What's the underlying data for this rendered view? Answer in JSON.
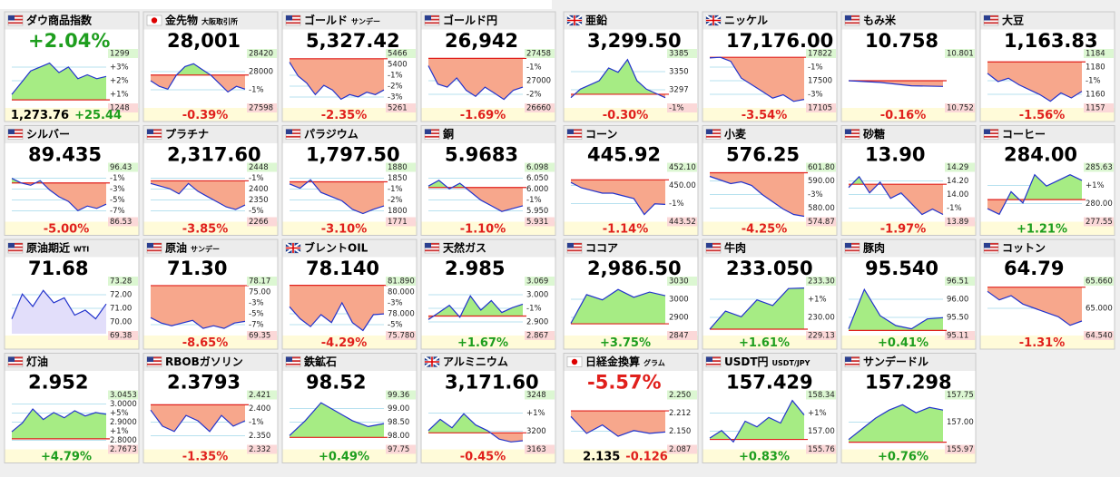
{
  "tiles": [
    {
      "name": "ダウ商品指数",
      "flag": "us",
      "headline": "+2.04%",
      "headline_color": "#1e9e1e",
      "right": [
        "1299",
        "+3%",
        "+2%",
        "+1%",
        "1248"
      ],
      "footer": [
        {
          "text": "1,273.76",
          "color": "#000000"
        },
        {
          "text": "+25.44",
          "color": "#1e9e1e"
        }
      ],
      "chart": {
        "ylim": [
          1240,
          1305
        ],
        "base": 1248,
        "values": [
          1255,
          1270,
          1285,
          1290,
          1295,
          1283,
          1290,
          1275,
          1280,
          1275,
          1278
        ]
      }
    },
    {
      "name": "金先物",
      "sub": "大阪取引所",
      "flag": "jp",
      "headline": "28,001",
      "right": [
        "28420",
        "28000",
        "-1%",
        "27598"
      ],
      "footer": [
        {
          "text": "-0.39%",
          "color": "#e0201c"
        }
      ],
      "chart": {
        "ylim": [
          27550,
          28450
        ],
        "base": 28100,
        "values": [
          28000,
          27900,
          27850,
          28100,
          28250,
          28300,
          28200,
          28100,
          27950,
          27800,
          27900,
          27850
        ]
      }
    },
    {
      "name": "ゴールド",
      "sub": "サンデー",
      "flag": "us",
      "headline": "5,327.42",
      "right": [
        "5466",
        "5400",
        "-1%",
        "-2%",
        "-3%",
        "5261"
      ],
      "footer": [
        {
          "text": "-2.35%",
          "color": "#e0201c"
        }
      ],
      "chart": {
        "ylim": [
          5250,
          5470
        ],
        "base": 5455,
        "values": [
          5440,
          5380,
          5350,
          5300,
          5340,
          5320,
          5280,
          5300,
          5290,
          5310,
          5300,
          5320
        ]
      }
    },
    {
      "name": "ゴールド円",
      "flag": "us",
      "headline": "26,942",
      "right": [
        "27458",
        "-1%",
        "27000",
        "-2%",
        "26660"
      ],
      "footer": [
        {
          "text": "-1.69%",
          "color": "#e0201c"
        }
      ],
      "chart": {
        "ylim": [
          26640,
          27470
        ],
        "base": 27420,
        "values": [
          27300,
          27000,
          26950,
          27100,
          26900,
          26800,
          26950,
          26850,
          26750,
          26900,
          26950
        ]
      }
    },
    {
      "name": "亜鉛",
      "flag": "uk",
      "headline": "3,299.50",
      "right": [
        "3385",
        "3350",
        "3297",
        "-1%"
      ],
      "footer": [
        {
          "text": "-0.30%",
          "color": "#e0201c"
        }
      ],
      "chart": {
        "ylim": [
          3280,
          3400
        ],
        "base": 3308,
        "values": [
          3300,
          3320,
          3330,
          3340,
          3370,
          3360,
          3390,
          3340,
          3320,
          3310,
          3300
        ]
      }
    },
    {
      "name": "ニッケル",
      "flag": "uk",
      "headline": "17,176.00",
      "right": [
        "17822",
        "-1%",
        "17500",
        "-3%",
        "17105"
      ],
      "footer": [
        {
          "text": "-3.54%",
          "color": "#e0201c"
        }
      ],
      "chart": {
        "ylim": [
          17080,
          17840
        ],
        "base": 17810,
        "values": [
          17800,
          17810,
          17750,
          17500,
          17400,
          17300,
          17200,
          17250,
          17150,
          17180
        ]
      }
    },
    {
      "name": "もみ米",
      "flag": "us",
      "headline": "10.758",
      "right": [
        "10.801",
        "10.752"
      ],
      "footer": [
        {
          "text": "-0.16%",
          "color": "#e0201c"
        }
      ],
      "chart": {
        "ylim": [
          10.7,
          10.85
        ],
        "base": 10.775,
        "values": [
          10.775,
          10.77,
          10.76,
          10.758
        ]
      }
    },
    {
      "name": "大豆",
      "flag": "us",
      "headline": "1,163.83",
      "right": [
        "1184",
        "1180",
        "-1%",
        "1160",
        "1157"
      ],
      "footer": [
        {
          "text": "-1.56%",
          "color": "#e0201c"
        }
      ],
      "chart": {
        "ylim": [
          1155,
          1186
        ],
        "base": 1182,
        "values": [
          1175,
          1170,
          1172,
          1168,
          1165,
          1162,
          1158,
          1163,
          1160,
          1164
        ]
      }
    },
    {
      "name": "シルバー",
      "flag": "us",
      "headline": "89.435",
      "right": [
        "96.43",
        "-1%",
        "-3%",
        "-5%",
        "-7%",
        "86.53"
      ],
      "footer": [
        {
          "text": "-5.00%",
          "color": "#e0201c"
        }
      ],
      "chart": {
        "ylim": [
          86,
          97
        ],
        "base": 94,
        "values": [
          95,
          94,
          93.5,
          94.5,
          92.5,
          91,
          90,
          88,
          89,
          88.5,
          89.4
        ]
      }
    },
    {
      "name": "プラチナ",
      "flag": "us",
      "headline": "2,317.60",
      "right": [
        "2448",
        "-1%",
        "2400",
        "2350",
        "-5%",
        "2266"
      ],
      "footer": [
        {
          "text": "-3.85%",
          "color": "#e0201c"
        }
      ],
      "chart": {
        "ylim": [
          2260,
          2455
        ],
        "base": 2410,
        "values": [
          2400,
          2390,
          2380,
          2360,
          2400,
          2370,
          2350,
          2330,
          2310,
          2300,
          2317
        ]
      }
    },
    {
      "name": "パラジウム",
      "flag": "us",
      "headline": "1,797.50",
      "right": [
        "1880",
        "1850",
        "-1%",
        "-2%",
        "1800",
        "1771"
      ],
      "footer": [
        {
          "text": "-3.10%",
          "color": "#e0201c"
        }
      ],
      "chart": {
        "ylim": [
          1765,
          1885
        ],
        "base": 1855,
        "values": [
          1850,
          1840,
          1860,
          1830,
          1820,
          1810,
          1790,
          1780,
          1790,
          1798
        ]
      }
    },
    {
      "name": "銅",
      "flag": "us",
      "headline": "5.9683",
      "right": [
        "6.098",
        "6.050",
        "6.000",
        "-1%",
        "5.950",
        "5.931"
      ],
      "footer": [
        {
          "text": "-1.10%",
          "color": "#e0201c"
        }
      ],
      "chart": {
        "ylim": [
          5.92,
          6.1
        ],
        "base": 6.035,
        "values": [
          6.04,
          6.06,
          6.03,
          6.05,
          6.02,
          5.99,
          5.97,
          5.95,
          5.96,
          5.97
        ]
      }
    },
    {
      "name": "コーン",
      "flag": "us",
      "headline": "445.92",
      "right": [
        "452.10",
        "450.00",
        "-1%",
        "443.52"
      ],
      "footer": [
        {
          "text": "-1.14%",
          "color": "#e0201c"
        }
      ],
      "chart": {
        "ylim": [
          443,
          452.5
        ],
        "base": 450.5,
        "values": [
          450,
          449,
          448.5,
          448,
          448,
          447.5,
          447,
          444,
          446,
          445.9
        ]
      }
    },
    {
      "name": "小麦",
      "flag": "us",
      "headline": "576.25",
      "right": [
        "601.80",
        "590.00",
        "-3%",
        "580.00",
        "574.87"
      ],
      "footer": [
        {
          "text": "-4.25%",
          "color": "#e0201c"
        }
      ],
      "chart": {
        "ylim": [
          574,
          602
        ],
        "base": 600,
        "values": [
          598,
          596,
          594,
          595,
          593,
          588,
          584,
          580,
          577,
          576
        ]
      }
    },
    {
      "name": "砂糖",
      "flag": "us",
      "headline": "13.90",
      "right": [
        "14.29",
        "14.20",
        "14.00",
        "-1%",
        "13.89"
      ],
      "footer": [
        {
          "text": "-1.97%",
          "color": "#e0201c"
        }
      ],
      "chart": {
        "ylim": [
          13.85,
          14.32
        ],
        "base": 14.18,
        "values": [
          14.15,
          14.25,
          14.1,
          14.2,
          14.05,
          14.1,
          14.0,
          13.9,
          13.95,
          13.9
        ]
      }
    },
    {
      "name": "コーヒー",
      "flag": "us",
      "headline": "284.00",
      "right": [
        "285.63",
        "+1%",
        "280.00",
        "277.55"
      ],
      "footer": [
        {
          "text": "+1.21%",
          "color": "#1e9e1e"
        }
      ],
      "chart": {
        "ylim": [
          277,
          286
        ],
        "base": 280.6,
        "values": [
          279,
          278,
          282,
          280,
          285,
          283,
          284,
          285,
          284
        ]
      }
    },
    {
      "name": "原油期近",
      "sub": "WTI",
      "flag": "us",
      "headline": "71.68",
      "right": [
        "73.28",
        "72.00",
        "71.00",
        "70.00",
        "69.38"
      ],
      "footer": [],
      "chart": {
        "ylim": [
          69.3,
          73.4
        ],
        "values": [
          70.5,
          72.5,
          71.5,
          72.8,
          71.8,
          72.2,
          70.8,
          71.2,
          70.5,
          71.7
        ]
      }
    },
    {
      "name": "原油",
      "sub": "サンデー",
      "flag": "us",
      "headline": "71.30",
      "right": [
        "78.17",
        "75.00",
        "-3%",
        "-5%",
        "-7%",
        "69.35"
      ],
      "footer": [
        {
          "text": "-8.65%",
          "color": "#e0201c"
        }
      ],
      "chart": {
        "ylim": [
          69,
          78.5
        ],
        "base": 78,
        "values": [
          72,
          71,
          70.5,
          71,
          71.5,
          70,
          70.5,
          70,
          71,
          71.3
        ]
      }
    },
    {
      "name": "ブレントOIL",
      "flag": "uk",
      "headline": "78.140",
      "right": [
        "81.890",
        "80.000",
        "-3%",
        "78.000",
        "-5%",
        "75.780"
      ],
      "footer": [
        {
          "text": "-4.29%",
          "color": "#e0201c"
        }
      ],
      "chart": {
        "ylim": [
          75.6,
          82
        ],
        "base": 81.7,
        "values": [
          79,
          77.5,
          76.5,
          78,
          77,
          79.5,
          77,
          76,
          78,
          78.1
        ]
      }
    },
    {
      "name": "天然ガス",
      "flag": "us",
      "headline": "2.985",
      "right": [
        "3.069",
        "3.000",
        "-1%",
        "2.900",
        "2.867"
      ],
      "footer": [
        {
          "text": "+1.67%",
          "color": "#1e9e1e"
        }
      ],
      "chart": {
        "ylim": [
          2.86,
          3.075
        ],
        "base": 2.935,
        "values": [
          2.92,
          2.95,
          2.98,
          2.93,
          3.02,
          2.96,
          3.0,
          2.95,
          2.97,
          2.985
        ]
      }
    },
    {
      "name": "ココア",
      "flag": "us",
      "headline": "2,986.50",
      "right": [
        "3030",
        "3000",
        "2900",
        "2847"
      ],
      "footer": [
        {
          "text": "+3.75%",
          "color": "#1e9e1e"
        }
      ],
      "chart": {
        "ylim": [
          2840,
          3035
        ],
        "base": 2878,
        "values": [
          2880,
          2990,
          2970,
          3010,
          2980,
          3000,
          2986
        ]
      }
    },
    {
      "name": "牛肉",
      "flag": "us",
      "headline": "233.050",
      "right": [
        "233.30",
        "+1%",
        "230.00",
        "229.13"
      ],
      "footer": [
        {
          "text": "+1.61%",
          "color": "#1e9e1e"
        }
      ],
      "chart": {
        "ylim": [
          229,
          233.5
        ],
        "base": 229.4,
        "values": [
          229.4,
          231,
          230.5,
          232,
          231.5,
          233,
          233.05
        ]
      }
    },
    {
      "name": "豚肉",
      "flag": "us",
      "headline": "95.540",
      "right": [
        "96.51",
        "96.00",
        "95.50",
        "95.11"
      ],
      "footer": [
        {
          "text": "+0.41%",
          "color": "#1e9e1e"
        }
      ],
      "chart": {
        "ylim": [
          95.05,
          96.6
        ],
        "base": 95.15,
        "values": [
          95.2,
          96.4,
          95.6,
          95.3,
          95.2,
          95.5,
          95.54
        ]
      }
    },
    {
      "name": "コットン",
      "flag": "us",
      "headline": "64.79",
      "right": [
        "65.660",
        "65.000",
        "64.540"
      ],
      "footer": [
        {
          "text": "-1.31%",
          "color": "#e0201c"
        }
      ],
      "chart": {
        "ylim": [
          64.5,
          65.7
        ],
        "base": 65.6,
        "values": [
          65.5,
          65.3,
          65.4,
          65.2,
          65.1,
          65,
          64.9,
          64.7,
          64.8
        ]
      }
    },
    {
      "name": "灯油",
      "flag": "us",
      "headline": "2.952",
      "right": [
        "3.0453",
        "3.0000",
        "+5%",
        "2.9000",
        "+1%",
        "2.8000",
        "2.7673"
      ],
      "footer": [
        {
          "text": "+4.79%",
          "color": "#1e9e1e"
        }
      ],
      "chart": {
        "ylim": [
          2.76,
          3.05
        ],
        "base": 2.81,
        "values": [
          2.85,
          2.9,
          2.98,
          2.92,
          2.96,
          2.93,
          2.97,
          2.94,
          2.96,
          2.95
        ]
      }
    },
    {
      "name": "RBOBガソリン",
      "flag": "us",
      "headline": "2.3793",
      "right": [
        "2.421",
        "2.400",
        "-1%",
        "2.350",
        "2.332"
      ],
      "footer": [
        {
          "text": "-1.35%",
          "color": "#e0201c"
        }
      ],
      "chart": {
        "ylim": [
          2.33,
          2.425
        ],
        "base": 2.41,
        "values": [
          2.4,
          2.37,
          2.36,
          2.39,
          2.38,
          2.36,
          2.39,
          2.37,
          2.38
        ]
      }
    },
    {
      "name": "鉄鉱石",
      "flag": "us",
      "headline": "98.52",
      "right": [
        "99.36",
        "99.00",
        "98.50",
        "98.00",
        "97.75"
      ],
      "footer": [
        {
          "text": "+0.49%",
          "color": "#1e9e1e"
        }
      ],
      "chart": {
        "ylim": [
          97.7,
          99.4
        ],
        "base": 98.04,
        "values": [
          98.1,
          98.6,
          99.2,
          98.9,
          98.6,
          98.4,
          98.5
        ]
      }
    },
    {
      "name": "アルミニウム",
      "flag": "uk",
      "headline": "3,171.60",
      "right": [
        "3248",
        "+1%",
        "3200",
        "3163"
      ],
      "footer": [
        {
          "text": "-0.45%",
          "color": "#e0201c"
        }
      ],
      "chart": {
        "ylim": [
          3160,
          3250
        ],
        "base": 3186,
        "values": [
          3190,
          3210,
          3195,
          3220,
          3200,
          3190,
          3175,
          3170,
          3172
        ]
      }
    },
    {
      "name": "日経金換算",
      "sub": "グラム",
      "flag": "jp",
      "headline": "-5.57%",
      "headline_color": "#e0201c",
      "right": [
        "2.250",
        "2.212",
        "2.150",
        "2.087"
      ],
      "footer": [
        {
          "text": "2.135",
          "color": "#000000"
        },
        {
          "text": "-0.126",
          "color": "#e0201c"
        }
      ],
      "chart": {
        "ylim": [
          2.08,
          2.26
        ],
        "base": 2.21,
        "values": [
          2.19,
          2.13,
          2.16,
          2.12,
          2.14,
          2.13,
          2.135
        ]
      }
    },
    {
      "name": "USDT円",
      "sub": "USDT/JPY",
      "flag": "us",
      "headline": "157.429",
      "right": [
        "158.34",
        "+1%",
        "157.00",
        "155.76"
      ],
      "footer": [
        {
          "text": "+0.83%",
          "color": "#1e9e1e"
        }
      ],
      "chart": {
        "ylim": [
          155.7,
          158.4
        ],
        "base": 156.13,
        "values": [
          156.2,
          156.6,
          156.0,
          157.1,
          156.8,
          157.3,
          157.0,
          158.2,
          157.43
        ]
      }
    },
    {
      "name": "サンデードル",
      "flag": "us",
      "headline": "157.298",
      "right": [
        "157.75",
        "157.00",
        "155.97"
      ],
      "footer": [
        {
          "text": "+0.76%",
          "color": "#1e9e1e"
        }
      ],
      "chart": {
        "ylim": [
          155.9,
          157.8
        ],
        "base": 156.1,
        "values": [
          156.2,
          156.6,
          157.0,
          157.3,
          157.5,
          157.2,
          157.4,
          157.3
        ]
      }
    }
  ]
}
